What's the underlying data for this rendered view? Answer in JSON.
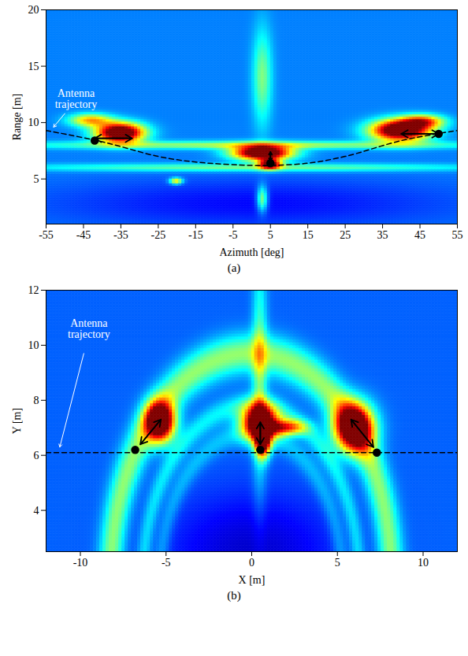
{
  "chart_data": [
    {
      "type": "heatmap",
      "caption": "(a)",
      "x_label": "Azimuth [deg]",
      "y_label": "Range [m]",
      "xlim": [
        -55,
        55
      ],
      "xticks": [
        -55,
        -45,
        -35,
        -25,
        -15,
        -5,
        5,
        15,
        25,
        35,
        45,
        55
      ],
      "ylim": [
        1,
        20
      ],
      "yticks": [
        5,
        10,
        15,
        20
      ],
      "color_range": [
        0,
        1
      ],
      "background_level": 0.25,
      "blobs": [
        {
          "x": -35,
          "y": 9.1,
          "sx": 4.5,
          "sy": 0.6,
          "value": 1.0
        },
        {
          "x": -43,
          "y": 10.2,
          "sx": 4,
          "sy": 0.4,
          "value": 0.45
        },
        {
          "x": 3,
          "y": 7.3,
          "sx": 5.5,
          "sy": 0.45,
          "value": 1.0
        },
        {
          "x": 5,
          "y": 6.3,
          "sx": 2,
          "sy": 0.3,
          "value": 0.8
        },
        {
          "x": 40,
          "y": 9.3,
          "sx": 5.5,
          "sy": 0.65,
          "value": 1.0
        },
        {
          "x": 46,
          "y": 10.1,
          "sx": 4,
          "sy": 0.4,
          "value": 0.5
        },
        {
          "x": 0,
          "y": 8.0,
          "sx": 45,
          "sy": 0.25,
          "value": 0.3
        },
        {
          "x": 0,
          "y": 6.0,
          "sx": 45,
          "sy": 0.25,
          "value": 0.25
        },
        {
          "x": 3,
          "y": 14,
          "sx": 1.8,
          "sy": 3,
          "value": 0.25
        },
        {
          "x": -20,
          "y": 4.8,
          "sx": 1.2,
          "sy": 0.2,
          "value": 0.45
        },
        {
          "x": 3,
          "y": 3.2,
          "sx": 1,
          "sy": 0.8,
          "value": 0.35
        },
        {
          "x": 0,
          "y": 2.8,
          "sx": 40,
          "sy": 1.6,
          "value": -0.12
        }
      ],
      "series": [
        {
          "name": "Antenna trajectory",
          "type": "line",
          "line_style": "dashed",
          "color": "#000000",
          "x": [
            -55,
            -40,
            -25,
            -15,
            0,
            5,
            15,
            25,
            40,
            55
          ],
          "y": [
            9.3,
            8.3,
            7.0,
            6.5,
            6.2,
            6.2,
            6.4,
            7.0,
            8.4,
            9.3
          ]
        },
        {
          "type": "scatter",
          "marker": "circle",
          "color": "#000000",
          "x": [
            -42,
            5,
            50
          ],
          "y": [
            8.4,
            6.4,
            9.0
          ]
        }
      ],
      "arrows": [
        {
          "x1": -42,
          "y1": 8.6,
          "x2": -32,
          "y2": 8.6
        },
        {
          "x1": 5,
          "y1": 6.6,
          "x2": 5,
          "y2": 7.4
        },
        {
          "x1": 40,
          "y1": 9.0,
          "x2": 50,
          "y2": 9.0
        }
      ],
      "annotations": [
        {
          "text": "Antenna trajectory",
          "color": "#ffffff",
          "x": -47,
          "y": 12.1,
          "arrow_x1": -50,
          "arrow_y1": 10.8,
          "arrow_x2": -53,
          "arrow_y2": 9.6
        }
      ]
    },
    {
      "type": "heatmap",
      "caption": "(b)",
      "x_label": "X [m]",
      "y_label": "Y [m]",
      "xlim": [
        -12,
        12
      ],
      "xticks": [
        -10,
        -5,
        0,
        5,
        10
      ],
      "ylim": [
        2.5,
        12
      ],
      "yticks": [
        4,
        6,
        8,
        10,
        12
      ],
      "color_range": [
        0,
        1
      ],
      "background_level": 0.22,
      "blobs": [
        {
          "x": -5.3,
          "y": 7.2,
          "sx": 0.6,
          "sy": 0.5,
          "value": 1.0
        },
        {
          "x": 0.5,
          "y": 7.2,
          "sx": 0.7,
          "sy": 0.45,
          "value": 1.0
        },
        {
          "x": 0.7,
          "y": 6.5,
          "sx": 0.3,
          "sy": 0.4,
          "value": 0.8
        },
        {
          "x": 6.0,
          "y": 7.0,
          "sx": 0.8,
          "sy": 0.6,
          "value": 1.0
        },
        {
          "x": 2.0,
          "y": 7.0,
          "sx": 0.8,
          "sy": 0.2,
          "value": 0.55
        },
        {
          "x": 0.5,
          "y": 9.0,
          "sx": 0.3,
          "sy": 3,
          "value": 0.25
        },
        {
          "x": 0,
          "y": 2.5,
          "sx": 3.5,
          "sy": 1.5,
          "value": -0.15
        }
      ],
      "rings": [
        {
          "x": 0,
          "y": 1.5,
          "r": 8.2,
          "width": 0.5,
          "value": 0.3
        },
        {
          "x": 0,
          "y": 1.5,
          "r": 6.3,
          "width": 0.3,
          "value": 0.15
        },
        {
          "x": 0,
          "y": 1.5,
          "r": 5.3,
          "width": 0.3,
          "value": 0.1
        }
      ],
      "series": [
        {
          "name": "Antenna trajectory",
          "type": "line",
          "line_style": "dashed",
          "color": "#000000",
          "x": [
            -12,
            12
          ],
          "y": [
            6.1,
            6.1
          ]
        },
        {
          "type": "scatter",
          "marker": "circle",
          "color": "#000000",
          "x": [
            -6.8,
            0.5,
            7.3
          ],
          "y": [
            6.2,
            6.2,
            6.1
          ]
        }
      ],
      "arrows": [
        {
          "x1": -6.5,
          "y1": 6.4,
          "x2": -5.3,
          "y2": 7.3
        },
        {
          "x1": 0.5,
          "y1": 6.4,
          "x2": 0.5,
          "y2": 7.2
        },
        {
          "x1": 7.1,
          "y1": 6.3,
          "x2": 5.8,
          "y2": 7.3
        }
      ],
      "annotations": [
        {
          "text": "Antenna trajectory",
          "color": "#ffffff",
          "x": -9.5,
          "y": 10.6,
          "arrow_x1": -9.8,
          "arrow_y1": 9.7,
          "arrow_x2": -11.2,
          "arrow_y2": 6.3
        }
      ]
    }
  ]
}
